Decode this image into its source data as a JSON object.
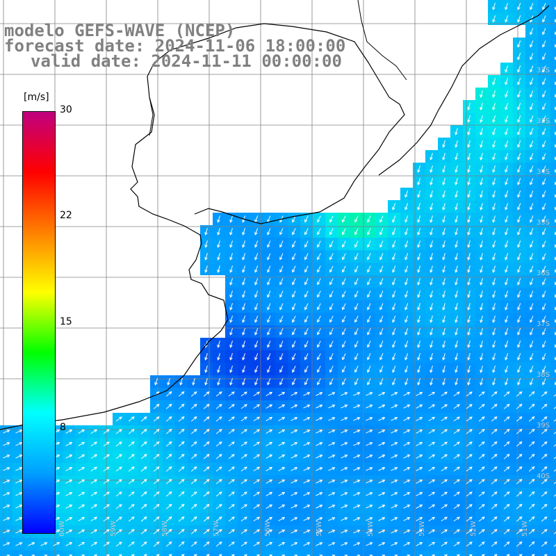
{
  "title": {
    "model": "modelo GEFS-WAVE (NCEP)",
    "forecast": "forecast date: 2024-11-06 18:00:00",
    "valid": "valid date: 2024-11-11 00:00:00"
  },
  "colorbar": {
    "unit": "[m/s]",
    "ticks": [
      "30",
      "22",
      "15",
      "8"
    ],
    "range": [
      0,
      30
    ],
    "colors": [
      "#0000ff",
      "#00a0ff",
      "#00ffff",
      "#00ff00",
      "#ffff00",
      "#ff8000",
      "#ff0000",
      "#c00080"
    ]
  },
  "map": {
    "variable": "wind speed and direction",
    "grid": true,
    "land_color": "#ffffff",
    "coastline_color": "#000000",
    "arrow_color": "#ffffff",
    "lat_labels": [
      "32S",
      "33S",
      "34S",
      "35S",
      "36S",
      "37S",
      "38S",
      "39S",
      "40S"
    ],
    "lon_labels": [
      "60W",
      "59W",
      "58W",
      "57W",
      "56W",
      "55W",
      "54W",
      "53W",
      "52W",
      "51W"
    ]
  }
}
